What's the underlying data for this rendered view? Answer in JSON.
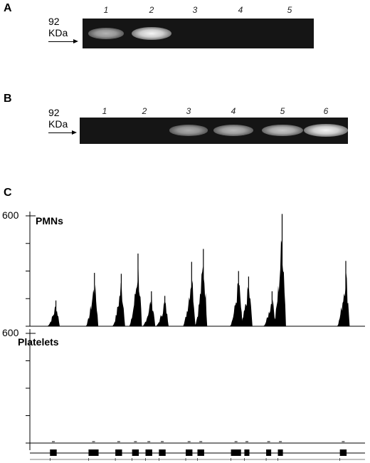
{
  "panel_a": {
    "letter": "A",
    "marker": {
      "size": "92",
      "unit": "KDa"
    },
    "lanes": [
      "1",
      "2",
      "3",
      "4",
      "5"
    ],
    "band_intensity": [
      0.55,
      1.0,
      0,
      0,
      0
    ]
  },
  "panel_b": {
    "letter": "B",
    "marker": {
      "size": "92",
      "unit": "KDa"
    },
    "lanes": [
      "1",
      "2",
      "3",
      "4",
      "5",
      "6"
    ],
    "band_intensity": [
      0,
      0,
      0.5,
      0.6,
      0.7,
      1.0
    ]
  },
  "panel_c": {
    "letter": "C",
    "tracks": [
      {
        "name": "PMNs",
        "ymax_label": "600"
      },
      {
        "name": "Platelets",
        "ymax_label": "600"
      }
    ]
  },
  "chart_data": {
    "type": "area",
    "x_axis": "genomic position (exons)",
    "ylim": [
      0,
      600
    ],
    "series": [
      {
        "name": "PMNs",
        "peaks": [
          {
            "x": 0.07,
            "y": 140
          },
          {
            "x": 0.185,
            "y": 290
          },
          {
            "x": 0.265,
            "y": 285
          },
          {
            "x": 0.315,
            "y": 395
          },
          {
            "x": 0.355,
            "y": 190
          },
          {
            "x": 0.395,
            "y": 165
          },
          {
            "x": 0.475,
            "y": 350
          },
          {
            "x": 0.51,
            "y": 420
          },
          {
            "x": 0.615,
            "y": 300
          },
          {
            "x": 0.645,
            "y": 270
          },
          {
            "x": 0.715,
            "y": 190
          },
          {
            "x": 0.745,
            "y": 610
          },
          {
            "x": 0.935,
            "y": 355
          }
        ]
      },
      {
        "name": "Platelets",
        "peaks": []
      }
    ],
    "exons": [
      {
        "start": 0.06,
        "end": 0.08
      },
      {
        "start": 0.175,
        "end": 0.205
      },
      {
        "start": 0.255,
        "end": 0.275
      },
      {
        "start": 0.305,
        "end": 0.325
      },
      {
        "start": 0.345,
        "end": 0.365
      },
      {
        "start": 0.385,
        "end": 0.405
      },
      {
        "start": 0.465,
        "end": 0.485
      },
      {
        "start": 0.5,
        "end": 0.52
      },
      {
        "start": 0.6,
        "end": 0.63
      },
      {
        "start": 0.64,
        "end": 0.655
      },
      {
        "start": 0.705,
        "end": 0.72
      },
      {
        "start": 0.74,
        "end": 0.755
      },
      {
        "start": 0.925,
        "end": 0.945
      }
    ]
  }
}
